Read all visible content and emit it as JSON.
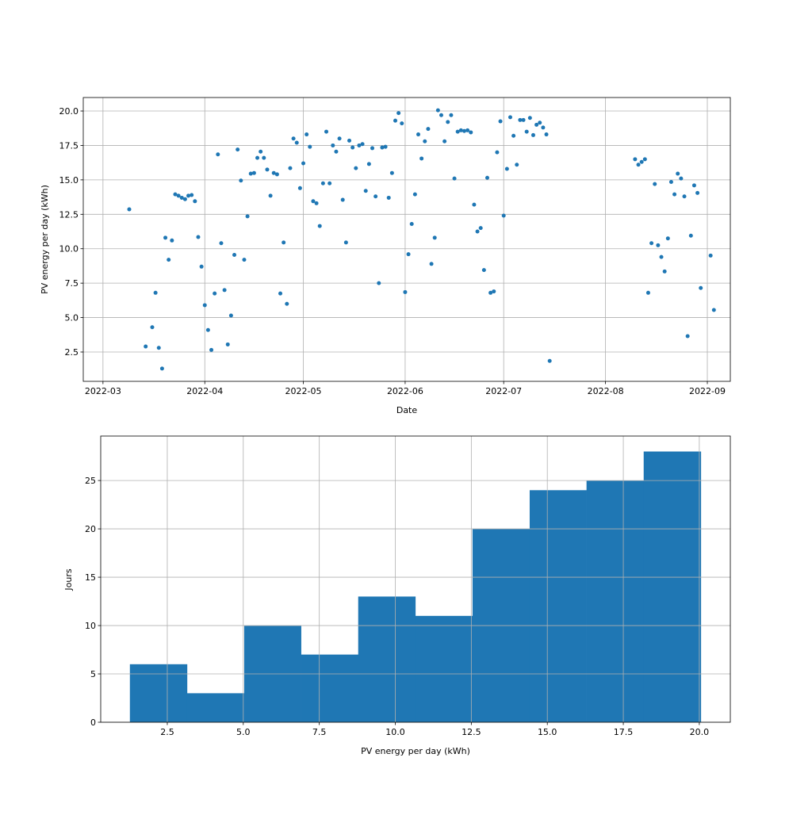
{
  "chart_data": [
    {
      "type": "scatter",
      "xlabel": "Date",
      "ylabel": "PV energy per day (kWh)",
      "x_axis_type": "date",
      "xlim": [
        "2022-02-23",
        "2022-09-08"
      ],
      "ylim": [
        0.37,
        20.98
      ],
      "grid": true,
      "color": "#1f77b4",
      "xticks": [
        "2022-03-01",
        "2022-04-01",
        "2022-05-01",
        "2022-06-01",
        "2022-07-01",
        "2022-08-01",
        "2022-09-01"
      ],
      "xtick_labels": [
        "2022-03",
        "2022-04",
        "2022-05",
        "2022-06",
        "2022-07",
        "2022-08",
        "2022-09"
      ],
      "yticks": [
        2.5,
        5.0,
        7.5,
        10.0,
        12.5,
        15.0,
        17.5,
        20.0
      ],
      "ytick_labels": [
        "2.5",
        "5.0",
        "7.5",
        "10.0",
        "12.5",
        "15.0",
        "17.5",
        "20.0"
      ],
      "points": [
        [
          "2022-03-09",
          12.86
        ],
        [
          "2022-03-14",
          2.9
        ],
        [
          "2022-03-16",
          4.3
        ],
        [
          "2022-03-17",
          6.8
        ],
        [
          "2022-03-18",
          2.8
        ],
        [
          "2022-03-19",
          1.3
        ],
        [
          "2022-03-20",
          10.8
        ],
        [
          "2022-03-21",
          9.2
        ],
        [
          "2022-03-22",
          10.6
        ],
        [
          "2022-03-23",
          13.95
        ],
        [
          "2022-03-24",
          13.85
        ],
        [
          "2022-03-25",
          13.7
        ],
        [
          "2022-03-26",
          13.6
        ],
        [
          "2022-03-27",
          13.85
        ],
        [
          "2022-03-28",
          13.9
        ],
        [
          "2022-03-29",
          13.45
        ],
        [
          "2022-03-30",
          10.85
        ],
        [
          "2022-03-31",
          8.7
        ],
        [
          "2022-04-01",
          5.9
        ],
        [
          "2022-04-02",
          4.1
        ],
        [
          "2022-04-03",
          2.65
        ],
        [
          "2022-04-04",
          6.75
        ],
        [
          "2022-04-05",
          16.85
        ],
        [
          "2022-04-06",
          10.4
        ],
        [
          "2022-04-07",
          7.0
        ],
        [
          "2022-04-08",
          3.05
        ],
        [
          "2022-04-09",
          5.15
        ],
        [
          "2022-04-10",
          9.55
        ],
        [
          "2022-04-11",
          17.2
        ],
        [
          "2022-04-12",
          14.95
        ],
        [
          "2022-04-13",
          9.2
        ],
        [
          "2022-04-14",
          12.35
        ],
        [
          "2022-04-15",
          15.45
        ],
        [
          "2022-04-16",
          15.5
        ],
        [
          "2022-04-17",
          16.6
        ],
        [
          "2022-04-18",
          17.05
        ],
        [
          "2022-04-19",
          16.6
        ],
        [
          "2022-04-20",
          15.75
        ],
        [
          "2022-04-21",
          13.85
        ],
        [
          "2022-04-22",
          15.5
        ],
        [
          "2022-04-23",
          15.4
        ],
        [
          "2022-04-24",
          6.75
        ],
        [
          "2022-04-25",
          10.45
        ],
        [
          "2022-04-26",
          6.0
        ],
        [
          "2022-04-27",
          15.85
        ],
        [
          "2022-04-28",
          18.0
        ],
        [
          "2022-04-29",
          17.7
        ],
        [
          "2022-04-30",
          14.4
        ],
        [
          "2022-05-01",
          16.2
        ],
        [
          "2022-05-02",
          18.3
        ],
        [
          "2022-05-03",
          17.4
        ],
        [
          "2022-05-04",
          13.45
        ],
        [
          "2022-05-05",
          13.3
        ],
        [
          "2022-05-06",
          11.65
        ],
        [
          "2022-05-07",
          14.75
        ],
        [
          "2022-05-08",
          18.5
        ],
        [
          "2022-05-09",
          14.75
        ],
        [
          "2022-05-10",
          17.5
        ],
        [
          "2022-05-11",
          17.05
        ],
        [
          "2022-05-12",
          18.0
        ],
        [
          "2022-05-13",
          13.55
        ],
        [
          "2022-05-14",
          10.45
        ],
        [
          "2022-05-15",
          17.85
        ],
        [
          "2022-05-16",
          17.35
        ],
        [
          "2022-05-17",
          15.85
        ],
        [
          "2022-05-18",
          17.5
        ],
        [
          "2022-05-19",
          17.6
        ],
        [
          "2022-05-20",
          14.2
        ],
        [
          "2022-05-21",
          16.15
        ],
        [
          "2022-05-22",
          17.3
        ],
        [
          "2022-05-23",
          13.8
        ],
        [
          "2022-05-24",
          7.5
        ],
        [
          "2022-05-25",
          17.35
        ],
        [
          "2022-05-26",
          17.4
        ],
        [
          "2022-05-27",
          13.7
        ],
        [
          "2022-05-28",
          15.5
        ],
        [
          "2022-05-29",
          19.3
        ],
        [
          "2022-05-30",
          19.85
        ],
        [
          "2022-05-31",
          19.1
        ],
        [
          "2022-06-01",
          6.85
        ],
        [
          "2022-06-02",
          9.6
        ],
        [
          "2022-06-03",
          11.8
        ],
        [
          "2022-06-04",
          13.95
        ],
        [
          "2022-06-05",
          18.3
        ],
        [
          "2022-06-06",
          16.55
        ],
        [
          "2022-06-07",
          17.8
        ],
        [
          "2022-06-08",
          18.7
        ],
        [
          "2022-06-09",
          8.9
        ],
        [
          "2022-06-10",
          10.8
        ],
        [
          "2022-06-11",
          20.05
        ],
        [
          "2022-06-12",
          19.7
        ],
        [
          "2022-06-13",
          17.8
        ],
        [
          "2022-06-14",
          19.2
        ],
        [
          "2022-06-15",
          19.7
        ],
        [
          "2022-06-16",
          15.1
        ],
        [
          "2022-06-17",
          18.5
        ],
        [
          "2022-06-18",
          18.6
        ],
        [
          "2022-06-19",
          18.55
        ],
        [
          "2022-06-20",
          18.6
        ],
        [
          "2022-06-21",
          18.45
        ],
        [
          "2022-06-22",
          13.2
        ],
        [
          "2022-06-23",
          11.25
        ],
        [
          "2022-06-24",
          11.5
        ],
        [
          "2022-06-25",
          8.45
        ],
        [
          "2022-06-26",
          15.15
        ],
        [
          "2022-06-27",
          6.8
        ],
        [
          "2022-06-28",
          6.9
        ],
        [
          "2022-06-29",
          17.0
        ],
        [
          "2022-06-30",
          19.25
        ],
        [
          "2022-07-01",
          12.4
        ],
        [
          "2022-07-02",
          15.8
        ],
        [
          "2022-07-03",
          19.55
        ],
        [
          "2022-07-04",
          18.2
        ],
        [
          "2022-07-05",
          16.1
        ],
        [
          "2022-07-06",
          19.35
        ],
        [
          "2022-07-07",
          19.35
        ],
        [
          "2022-07-08",
          18.5
        ],
        [
          "2022-07-09",
          19.5
        ],
        [
          "2022-07-10",
          18.25
        ],
        [
          "2022-07-11",
          19.0
        ],
        [
          "2022-07-12",
          19.15
        ],
        [
          "2022-07-13",
          18.8
        ],
        [
          "2022-07-14",
          18.3
        ],
        [
          "2022-07-15",
          1.85
        ],
        [
          "2022-08-10",
          16.5
        ],
        [
          "2022-08-11",
          16.1
        ],
        [
          "2022-08-12",
          16.3
        ],
        [
          "2022-08-13",
          16.5
        ],
        [
          "2022-08-14",
          6.8
        ],
        [
          "2022-08-15",
          10.4
        ],
        [
          "2022-08-16",
          14.7
        ],
        [
          "2022-08-17",
          10.25
        ],
        [
          "2022-08-18",
          9.4
        ],
        [
          "2022-08-19",
          8.35
        ],
        [
          "2022-08-20",
          10.75
        ],
        [
          "2022-08-21",
          14.85
        ],
        [
          "2022-08-22",
          13.95
        ],
        [
          "2022-08-23",
          15.45
        ],
        [
          "2022-08-24",
          15.1
        ],
        [
          "2022-08-25",
          13.8
        ],
        [
          "2022-08-26",
          3.65
        ],
        [
          "2022-08-27",
          10.95
        ],
        [
          "2022-08-28",
          14.6
        ],
        [
          "2022-08-29",
          14.05
        ],
        [
          "2022-08-30",
          7.15
        ],
        [
          "2022-09-02",
          9.5
        ],
        [
          "2022-09-03",
          5.55
        ]
      ]
    },
    {
      "type": "bar",
      "subtype": "histogram",
      "xlabel": "PV energy per day (kWh)",
      "ylabel": "Jours",
      "xlim": [
        0.31,
        21.02
      ],
      "ylim": [
        0,
        29.6
      ],
      "grid": true,
      "color": "#1f77b4",
      "bin_edges": [
        1.27,
        3.15,
        5.03,
        6.9,
        8.78,
        10.66,
        12.54,
        14.42,
        16.29,
        18.17,
        20.05
      ],
      "values": [
        6,
        3,
        10,
        7,
        13,
        11,
        20,
        24,
        25,
        28
      ],
      "xticks": [
        2.5,
        5.0,
        7.5,
        10.0,
        12.5,
        15.0,
        17.5,
        20.0
      ],
      "xtick_labels": [
        "2.5",
        "5.0",
        "7.5",
        "10.0",
        "12.5",
        "15.0",
        "17.5",
        "20.0"
      ],
      "yticks": [
        0,
        5,
        10,
        15,
        20,
        25
      ],
      "ytick_labels": [
        "0",
        "5",
        "10",
        "15",
        "20",
        "25"
      ]
    }
  ]
}
